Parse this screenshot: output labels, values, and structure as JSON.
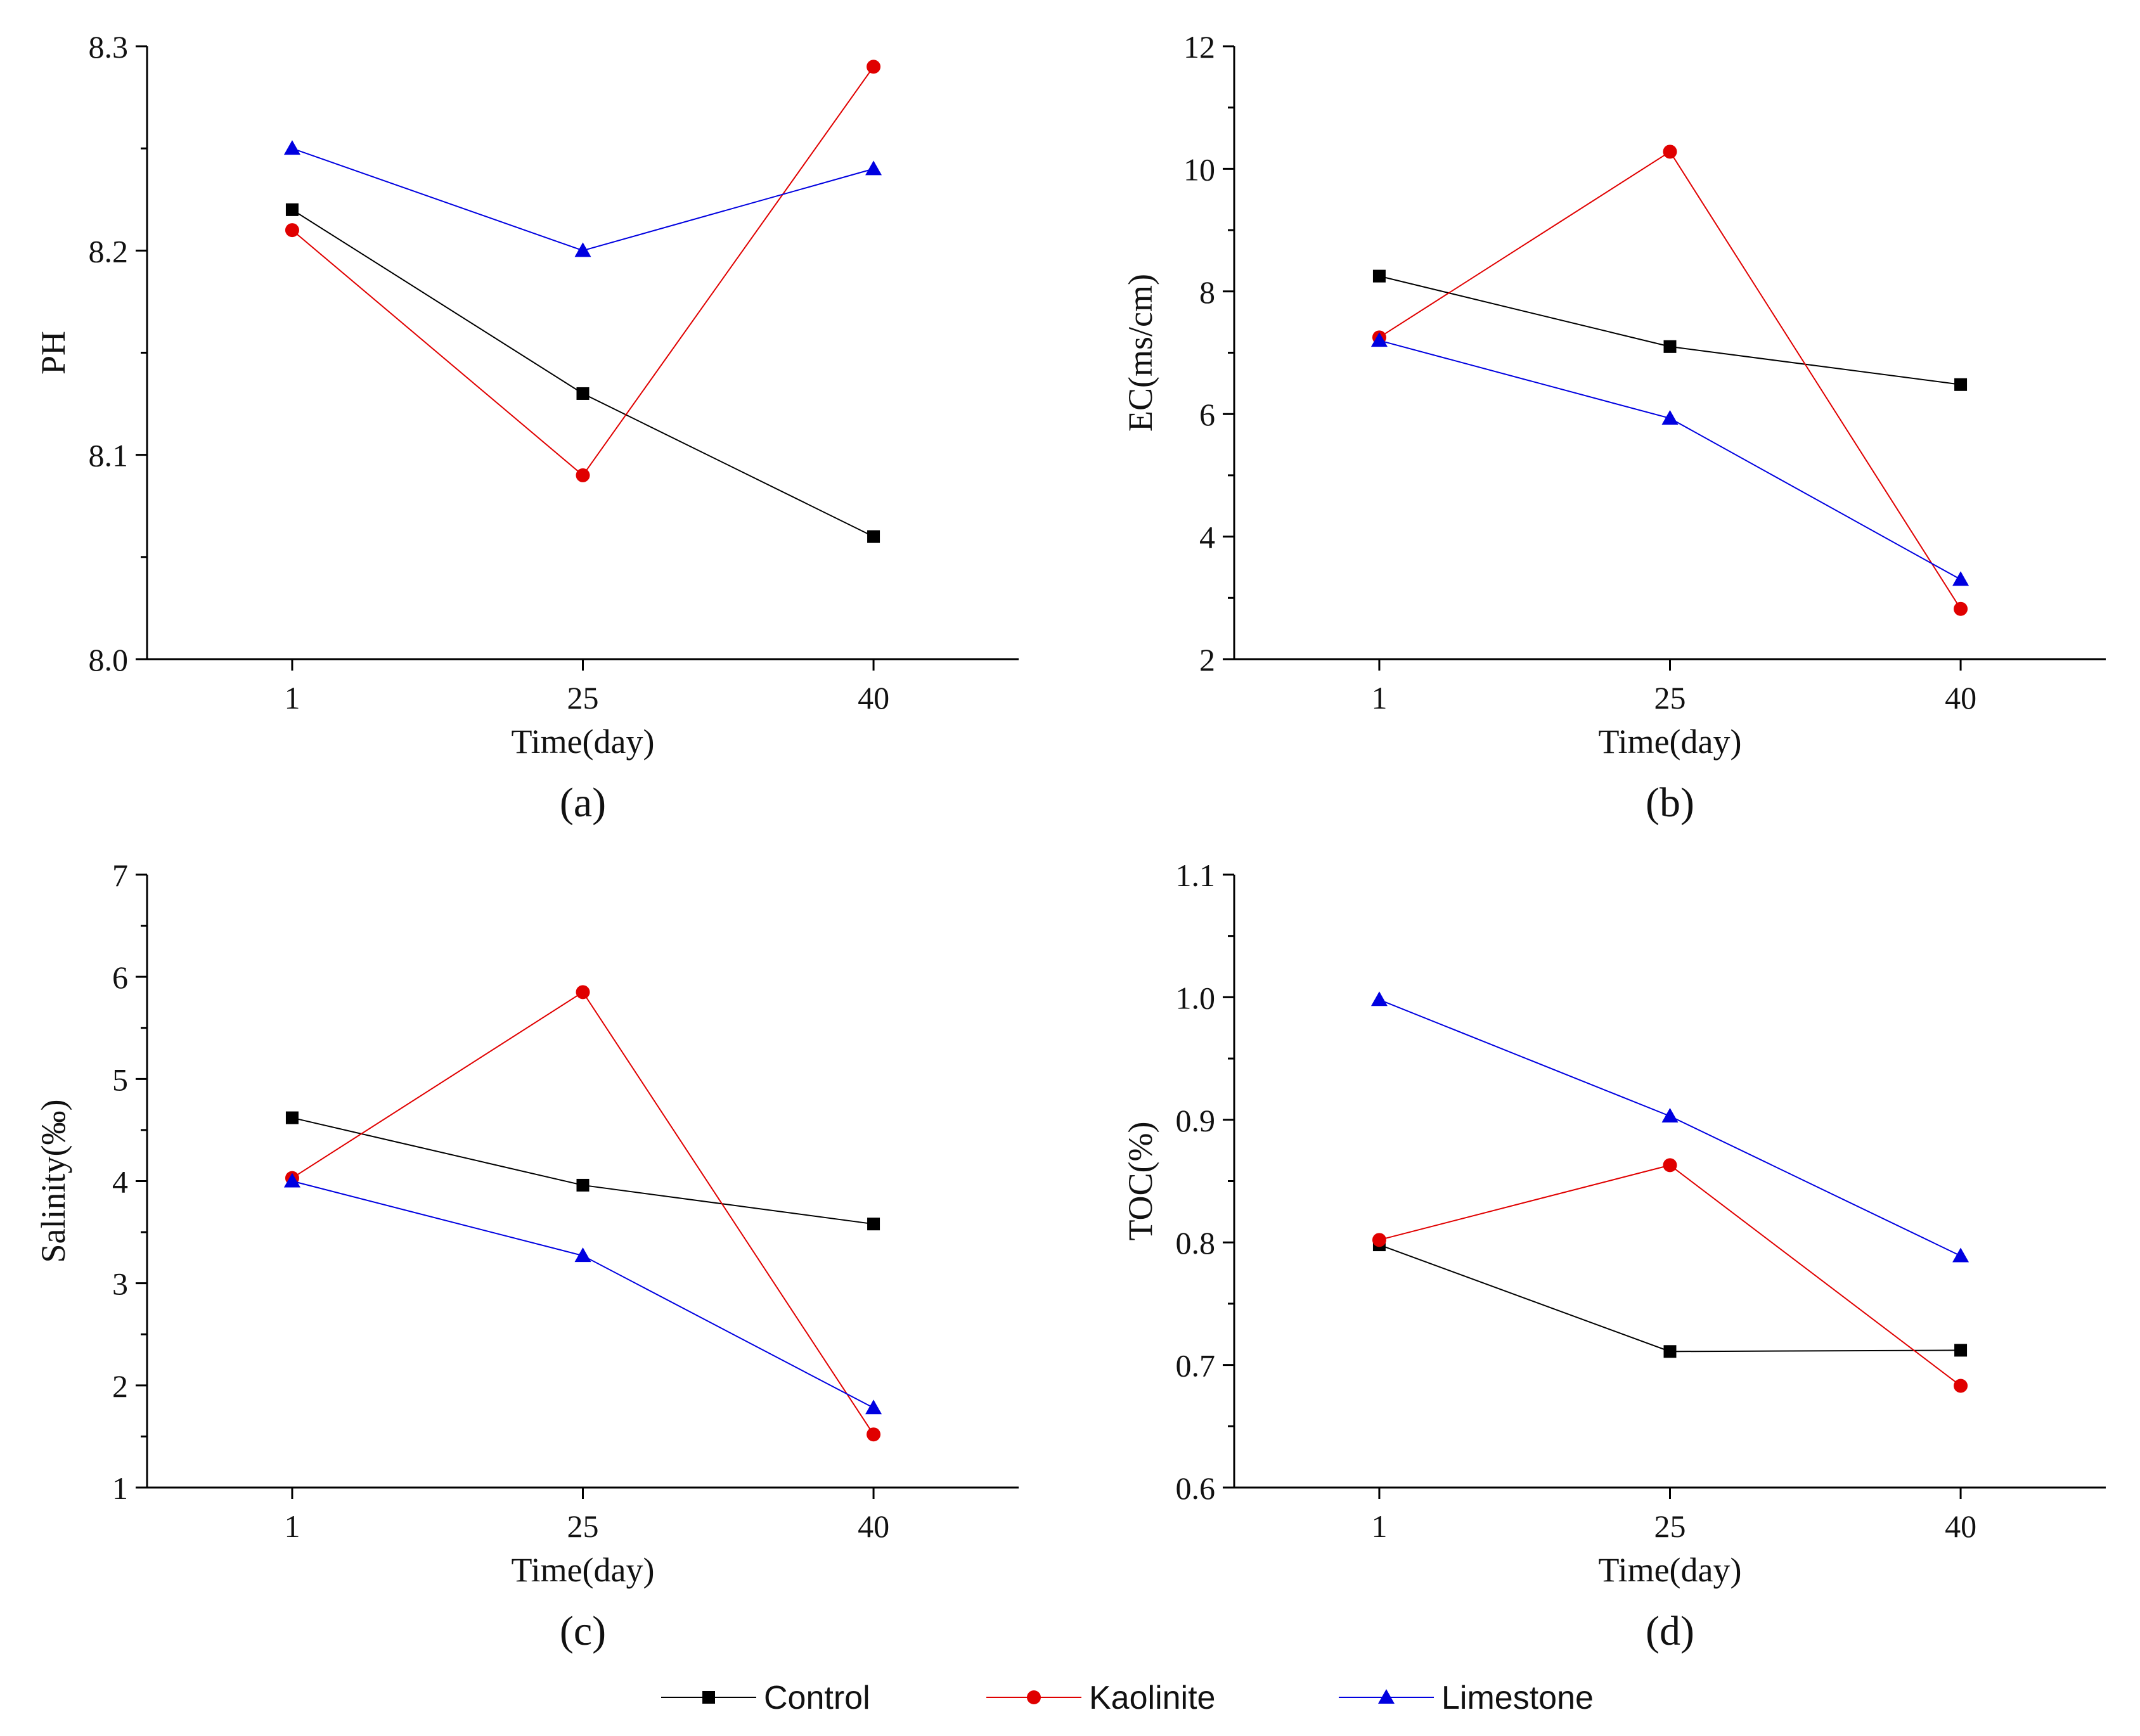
{
  "x_axis_label": "Time(day)",
  "colors": {
    "Control": "#000000",
    "Kaolinite": "#e00000",
    "Limestone": "#0000e0"
  },
  "markers": {
    "Control": "square",
    "Kaolinite": "circle",
    "Limestone": "triangle"
  },
  "chart_data": [
    {
      "type": "line",
      "panel_label": "(a)",
      "xlabel": "Time(day)",
      "ylabel": "PH",
      "categories": [
        "1",
        "25",
        "40"
      ],
      "ylim": [
        8.0,
        8.3
      ],
      "yticks": [
        8.0,
        8.1,
        8.2,
        8.3
      ],
      "ytick_labels": [
        "8.0",
        "8.1",
        "8.2",
        "8.3"
      ],
      "minor_ticks": true,
      "series": [
        {
          "name": "Control",
          "values": [
            8.22,
            8.13,
            8.06
          ]
        },
        {
          "name": "Kaolinite",
          "values": [
            8.21,
            8.09,
            8.29
          ]
        },
        {
          "name": "Limestone",
          "values": [
            8.25,
            8.2,
            8.24
          ]
        }
      ]
    },
    {
      "type": "line",
      "panel_label": "(b)",
      "xlabel": "Time(day)",
      "ylabel": "EC(ms/cm)",
      "categories": [
        "1",
        "25",
        "40"
      ],
      "ylim": [
        2,
        12
      ],
      "yticks": [
        2,
        4,
        6,
        8,
        10,
        12
      ],
      "ytick_labels": [
        "2",
        "4",
        "6",
        "8",
        "10",
        "12"
      ],
      "minor_ticks": true,
      "series": [
        {
          "name": "Control",
          "values": [
            8.25,
            7.1,
            6.48
          ]
        },
        {
          "name": "Kaolinite",
          "values": [
            7.25,
            10.28,
            2.82
          ]
        },
        {
          "name": "Limestone",
          "values": [
            7.2,
            5.93,
            3.3
          ]
        }
      ]
    },
    {
      "type": "line",
      "panel_label": "(c)",
      "xlabel": "Time(day)",
      "ylabel": "Salinity(‰)",
      "categories": [
        "1",
        "25",
        "40"
      ],
      "ylim": [
        1,
        7
      ],
      "yticks": [
        1,
        2,
        3,
        4,
        5,
        6,
        7
      ],
      "ytick_labels": [
        "1",
        "2",
        "3",
        "4",
        "5",
        "6",
        "7"
      ],
      "minor_ticks": true,
      "series": [
        {
          "name": "Control",
          "values": [
            4.62,
            3.96,
            3.58
          ]
        },
        {
          "name": "Kaolinite",
          "values": [
            4.03,
            5.85,
            1.52
          ]
        },
        {
          "name": "Limestone",
          "values": [
            4.0,
            3.27,
            1.78
          ]
        }
      ]
    },
    {
      "type": "line",
      "panel_label": "(d)",
      "xlabel": "Time(day)",
      "ylabel": "TOC(%)",
      "categories": [
        "1",
        "25",
        "40"
      ],
      "ylim": [
        0.6,
        1.1
      ],
      "yticks": [
        0.6,
        0.7,
        0.8,
        0.9,
        1.0,
        1.1
      ],
      "ytick_labels": [
        "0.6",
        "0.7",
        "0.8",
        "0.9",
        "1.0",
        "1.1"
      ],
      "minor_ticks": true,
      "series": [
        {
          "name": "Control",
          "values": [
            0.798,
            0.711,
            0.712
          ]
        },
        {
          "name": "Kaolinite",
          "values": [
            0.802,
            0.863,
            0.683
          ]
        },
        {
          "name": "Limestone",
          "values": [
            0.998,
            0.903,
            0.789
          ]
        }
      ]
    }
  ],
  "legend": {
    "placement": "bottom-center",
    "items": [
      {
        "name": "Control",
        "label": "Control"
      },
      {
        "name": "Kaolinite",
        "label": "Kaolinite"
      },
      {
        "name": "Limestone",
        "label": "Limestone"
      }
    ]
  }
}
